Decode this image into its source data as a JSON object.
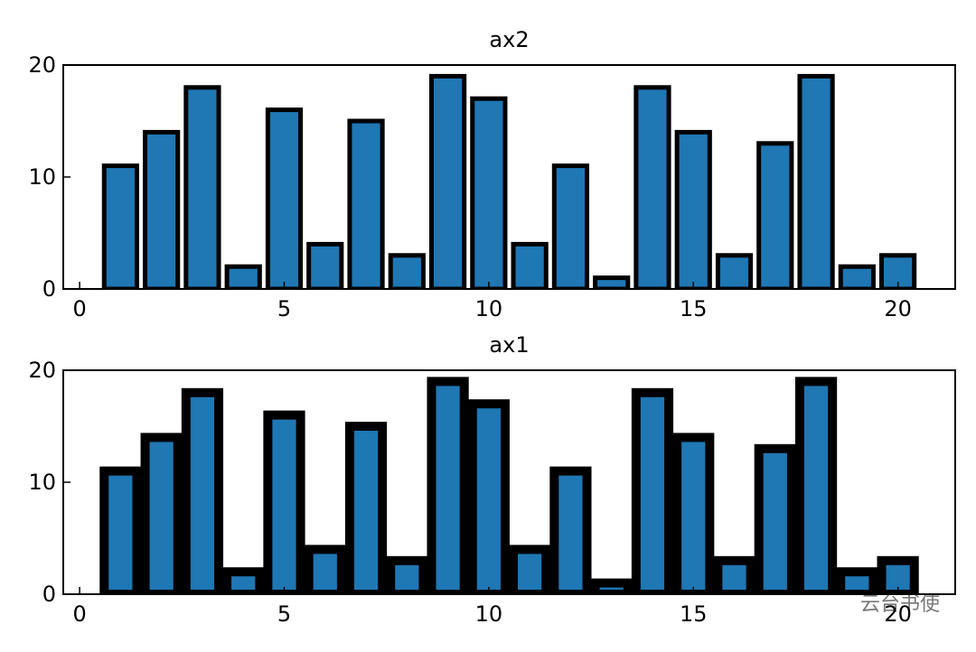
{
  "chart_data": [
    {
      "type": "bar",
      "title": "ax2",
      "x": [
        1,
        2,
        3,
        4,
        5,
        6,
        7,
        8,
        9,
        10,
        11,
        12,
        13,
        14,
        15,
        16,
        17,
        18,
        19,
        20
      ],
      "values": [
        11,
        14,
        18,
        2,
        16,
        4,
        15,
        3,
        19,
        17,
        4,
        11,
        1,
        18,
        14,
        3,
        13,
        19,
        2,
        3
      ],
      "color": "#1f77b4",
      "edgecolor": "#000000",
      "edge_width": 5,
      "bar_width": 0.8,
      "xlim": [
        -0.4,
        21.4
      ],
      "xticks": [
        0,
        5,
        10,
        15,
        20
      ],
      "ylim": [
        0,
        20
      ],
      "yticks": [
        0,
        10,
        20
      ]
    },
    {
      "type": "bar",
      "title": "ax1",
      "x": [
        1,
        2,
        3,
        4,
        5,
        6,
        7,
        8,
        9,
        10,
        11,
        12,
        13,
        14,
        15,
        16,
        17,
        18,
        19,
        20
      ],
      "values": [
        11,
        14,
        18,
        2,
        16,
        4,
        15,
        3,
        19,
        17,
        4,
        11,
        1,
        18,
        14,
        3,
        13,
        19,
        2,
        3
      ],
      "color": "#1f77b4",
      "edgecolor": "#000000",
      "edge_width": 10,
      "bar_width": 0.8,
      "xlim": [
        -0.4,
        21.4
      ],
      "xticks": [
        0,
        5,
        10,
        15,
        20
      ],
      "ylim": [
        0,
        20
      ],
      "yticks": [
        0,
        10,
        20
      ]
    }
  ],
  "watermark": "云台书使"
}
